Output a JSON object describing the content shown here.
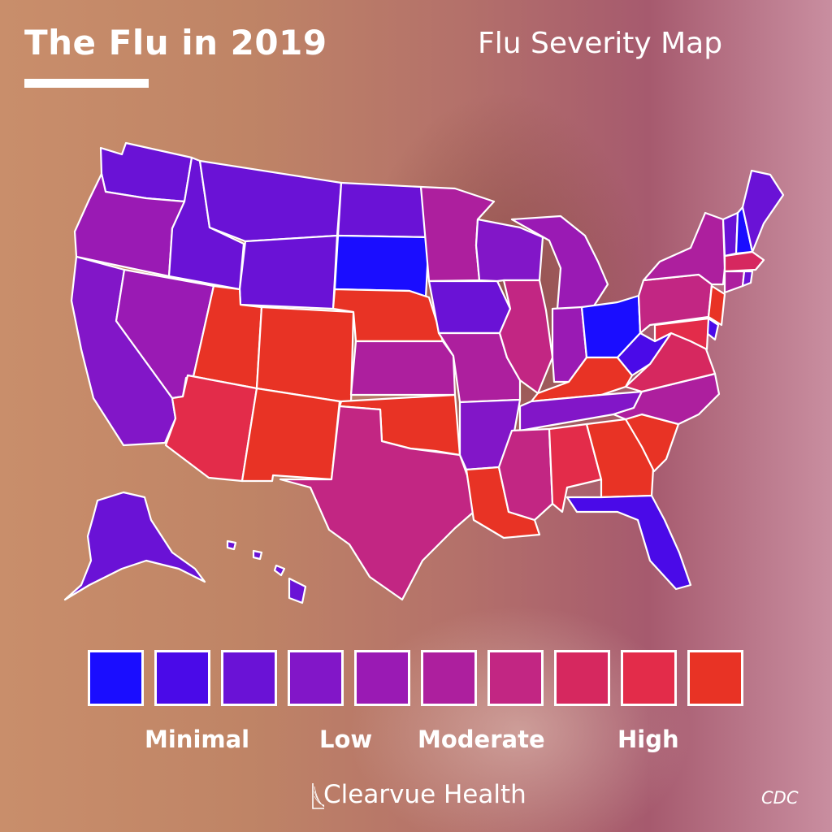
{
  "header": {
    "title": "The Flu in 2019",
    "subtitle": "Flu Severity Map"
  },
  "legend": {
    "colors": [
      "#1a0dff",
      "#4a0ae8",
      "#6a12d6",
      "#8216c8",
      "#9a1ab4",
      "#ad1f9e",
      "#c22683",
      "#d6285f",
      "#e32c4a",
      "#e83325"
    ],
    "labels": {
      "minimal": "Minimal",
      "low": "Low",
      "moderate": "Moderate",
      "high": "High"
    }
  },
  "map": {
    "states": [
      {
        "code": "WA",
        "level": 2
      },
      {
        "code": "OR",
        "level": 4
      },
      {
        "code": "CA",
        "level": 3
      },
      {
        "code": "NV",
        "level": 4
      },
      {
        "code": "ID",
        "level": 2
      },
      {
        "code": "MT",
        "level": 2
      },
      {
        "code": "WY",
        "level": 2
      },
      {
        "code": "UT",
        "level": 9
      },
      {
        "code": "AZ",
        "level": 8
      },
      {
        "code": "CO",
        "level": 9
      },
      {
        "code": "NM",
        "level": 9
      },
      {
        "code": "ND",
        "level": 2
      },
      {
        "code": "SD",
        "level": 0
      },
      {
        "code": "NE",
        "level": 9
      },
      {
        "code": "KS",
        "level": 5
      },
      {
        "code": "OK",
        "level": 9
      },
      {
        "code": "TX",
        "level": 6
      },
      {
        "code": "MN",
        "level": 5
      },
      {
        "code": "IA",
        "level": 2
      },
      {
        "code": "MO",
        "level": 5
      },
      {
        "code": "AR",
        "level": 3
      },
      {
        "code": "LA",
        "level": 9
      },
      {
        "code": "WI",
        "level": 3
      },
      {
        "code": "IL",
        "level": 6
      },
      {
        "code": "MI",
        "level": 4
      },
      {
        "code": "IN",
        "level": 4
      },
      {
        "code": "OH",
        "level": 0
      },
      {
        "code": "KY",
        "level": 9
      },
      {
        "code": "TN",
        "level": 3
      },
      {
        "code": "MS",
        "level": 6
      },
      {
        "code": "AL",
        "level": 8
      },
      {
        "code": "GA",
        "level": 9
      },
      {
        "code": "FL",
        "level": 1
      },
      {
        "code": "SC",
        "level": 9
      },
      {
        "code": "NC",
        "level": 5
      },
      {
        "code": "VA",
        "level": 7
      },
      {
        "code": "WV",
        "level": 1
      },
      {
        "code": "PA",
        "level": 6
      },
      {
        "code": "NY",
        "level": 5
      },
      {
        "code": "NJ",
        "level": 9
      },
      {
        "code": "DE",
        "level": 1
      },
      {
        "code": "MD",
        "level": 8
      },
      {
        "code": "VT",
        "level": 2
      },
      {
        "code": "NH",
        "level": 0
      },
      {
        "code": "ME",
        "level": 2
      },
      {
        "code": "MA",
        "level": 7
      },
      {
        "code": "CT",
        "level": 5
      },
      {
        "code": "RI",
        "level": 2
      },
      {
        "code": "AK",
        "level": 2
      },
      {
        "code": "HI",
        "level": 2
      }
    ]
  },
  "footer": {
    "brand": "Clearvue Health",
    "source": "CDC"
  }
}
